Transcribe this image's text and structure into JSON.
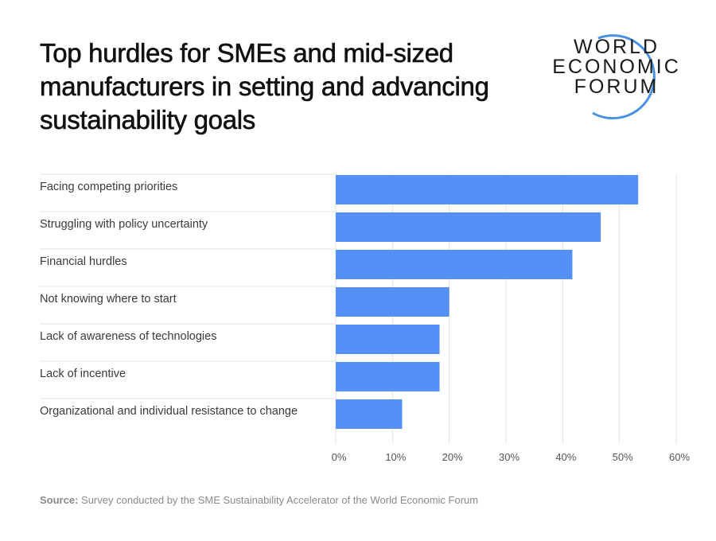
{
  "title": "Top hurdles for SMEs and mid-sized manufacturers in setting and advancing sustainability goals",
  "logo": {
    "lines": [
      "WORLD",
      "ECONOMIC",
      "FORUM"
    ],
    "arc_color": "#4a90e2"
  },
  "source": {
    "label": "Source:",
    "text": "Survey conducted by the SME Sustainability Accelerator of the World Economic Forum"
  },
  "chart_data": {
    "type": "bar",
    "orientation": "horizontal",
    "categories": [
      "Facing competing priorities",
      "Struggling with policy uncertainty",
      "Financial hurdles",
      "Not knowing where to start",
      "Lack of awareness of technologies",
      "Lack of incentive",
      "Organizational and individual resistance to change"
    ],
    "values": [
      53.3,
      46.7,
      41.7,
      20.0,
      18.3,
      18.3,
      11.7
    ],
    "xlim": [
      0,
      60
    ],
    "xticks": [
      "0%",
      "10%",
      "20%",
      "30%",
      "40%",
      "50%",
      "60%"
    ],
    "grid": true,
    "bar_color": "#5590f7",
    "title": "",
    "xlabel": "",
    "ylabel": ""
  }
}
